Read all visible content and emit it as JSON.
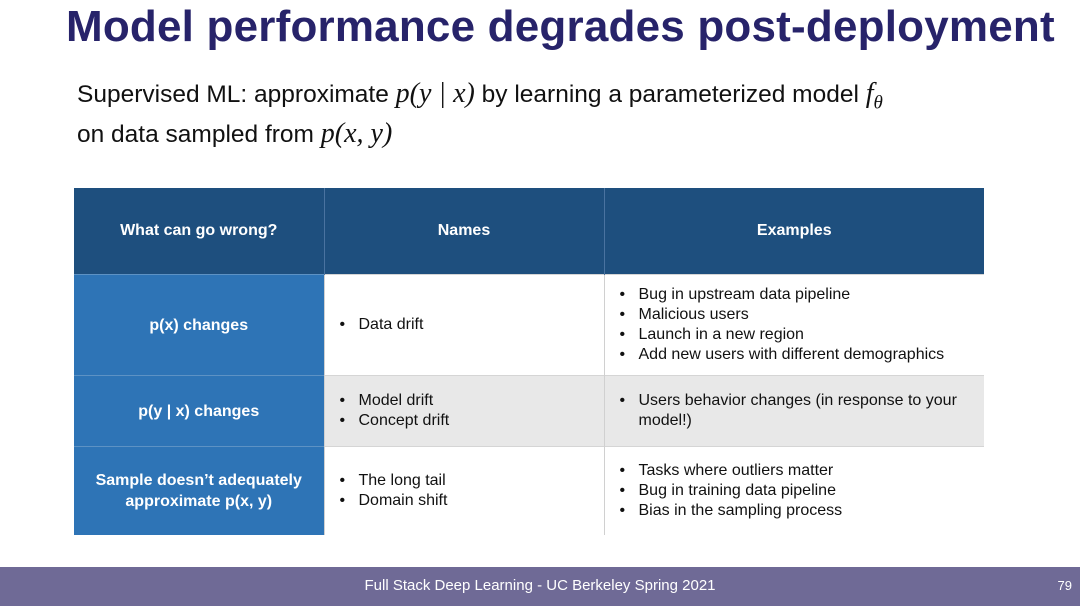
{
  "title": "Model performance degrades post-deployment",
  "intro": {
    "line1_text1": "Supervised ML: approximate ",
    "line1_math1": "p(y | x)",
    "line1_text2": " by learning a parameterized model ",
    "line1_math2_base": "f",
    "line1_math2_sub": "θ",
    "line2_text1": "on data sampled from ",
    "line2_math1": "p(x, y)"
  },
  "table": {
    "headers": [
      "What can go wrong?",
      "Names",
      "Examples"
    ],
    "rows": [
      {
        "category": "p(x) changes",
        "names": [
          "Data drift"
        ],
        "examples": [
          "Bug in upstream data pipeline",
          "Malicious users",
          "Launch in a new region",
          "Add new users with different demographics"
        ]
      },
      {
        "category": "p(y | x) changes",
        "names": [
          "Model drift",
          "Concept drift"
        ],
        "examples": [
          "Users behavior changes (in response to your model!)"
        ]
      },
      {
        "category": "Sample doesn’t adequately approximate p(x, y)",
        "names": [
          "The long tail",
          "Domain shift"
        ],
        "examples": [
          "Tasks where outliers matter",
          "Bug in training data pipeline",
          "Bias in the sampling process"
        ]
      }
    ]
  },
  "footer": {
    "text": "Full Stack Deep Learning - UC Berkeley Spring 2021",
    "page_number": "79"
  }
}
